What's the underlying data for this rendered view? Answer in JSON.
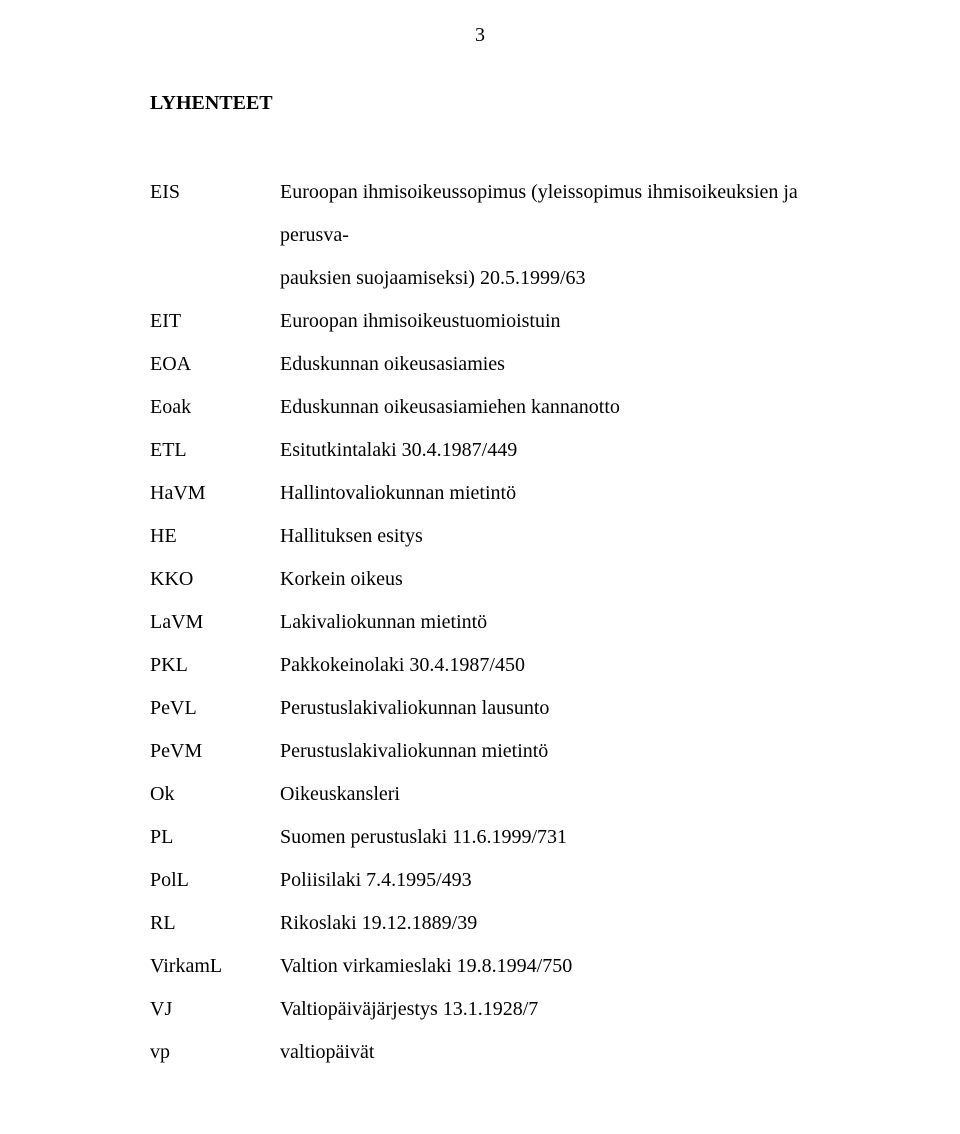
{
  "page_number": "3",
  "heading": "LYHENTEET",
  "entries": [
    {
      "abbr": "EIS",
      "def_line1": "Euroopan ihmisoikeussopimus (yleissopimus ihmisoikeuksien ja perusva-",
      "def_line2": "pauksien suojaamiseksi) 20.5.1999/63"
    },
    {
      "abbr": "EIT",
      "def_line1": "Euroopan ihmisoikeustuomioistuin"
    },
    {
      "abbr": "EOA",
      "def_line1": "Eduskunnan oikeusasiamies"
    },
    {
      "abbr": "Eoak",
      "def_line1": "Eduskunnan oikeusasiamiehen kannanotto"
    },
    {
      "abbr": "ETL",
      "def_line1": "Esitutkintalaki 30.4.1987/449"
    },
    {
      "abbr": "HaVM",
      "def_line1": "Hallintovaliokunnan mietintö"
    },
    {
      "abbr": "HE",
      "def_line1": "Hallituksen esitys"
    },
    {
      "abbr": "KKO",
      "def_line1": "Korkein oikeus"
    },
    {
      "abbr": "LaVM",
      "def_line1": "Lakivaliokunnan mietintö"
    },
    {
      "abbr": "PKL",
      "def_line1": "Pakkokeinolaki 30.4.1987/450"
    },
    {
      "abbr": "PeVL",
      "def_line1": "Perustuslakivaliokunnan lausunto"
    },
    {
      "abbr": "PeVM",
      "def_line1": "Perustuslakivaliokunnan mietintö"
    },
    {
      "abbr": "Ok",
      "def_line1": "Oikeuskansleri"
    },
    {
      "abbr": "PL",
      "def_line1": "Suomen perustuslaki 11.6.1999/731"
    },
    {
      "abbr": "PolL",
      "def_line1": "Poliisilaki 7.4.1995/493"
    },
    {
      "abbr": "RL",
      "def_line1": "Rikoslaki 19.12.1889/39"
    },
    {
      "abbr": "VirkamL",
      "def_line1": "Valtion virkamieslaki 19.8.1994/750"
    },
    {
      "abbr": "VJ",
      "def_line1": "Valtiopäiväjärjestys 13.1.1928/7"
    },
    {
      "abbr": "vp",
      "def_line1": "valtiopäivät"
    }
  ]
}
